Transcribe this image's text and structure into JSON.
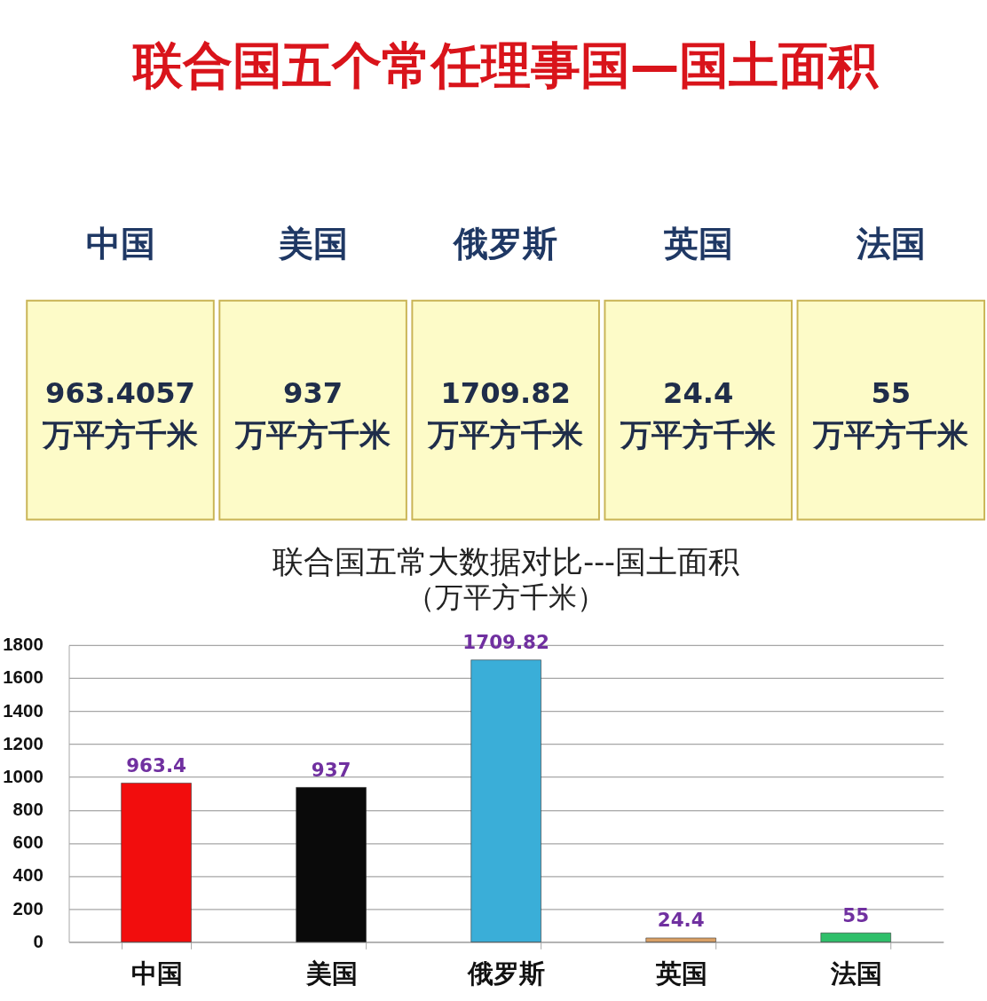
{
  "chart_data": [
    {
      "type": "other",
      "title": "联合国五个常任理事国—国土面积",
      "categories": [
        "中国",
        "美国",
        "俄罗斯",
        "英国",
        "法国"
      ],
      "values": [
        963.4057,
        937,
        1709.82,
        24.4,
        55
      ],
      "data_labels": true,
      "ylabel": "万平方千米"
    },
    {
      "type": "bar",
      "title": "联合国五常大数据对比---国土面积",
      "subtitle": "（万平方千米）",
      "categories": [
        "中国",
        "美国",
        "俄罗斯",
        "英国",
        "法国"
      ],
      "values": [
        963.4,
        937,
        1709.82,
        24.4,
        55
      ],
      "colors": [
        "#f20d0d",
        "#0a0a0a",
        "#3aaed8",
        "#d9a066",
        "#2fbf6a"
      ],
      "ylim": [
        0,
        1800
      ],
      "yticks": [
        0,
        200,
        400,
        600,
        800,
        1000,
        1200,
        1400,
        1600,
        1800
      ],
      "grid": "y",
      "data_labels": true
    }
  ]
}
